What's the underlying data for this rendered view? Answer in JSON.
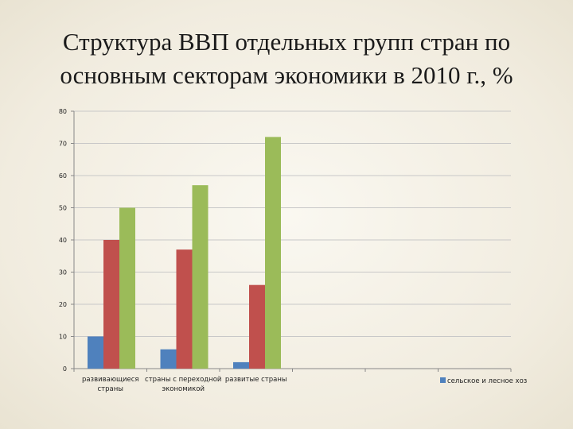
{
  "slide": {
    "title_line1": "Структура ВВП отдельных групп стран по",
    "title_line2": "основным секторам экономики в 2010 г., %"
  },
  "chart_data": {
    "type": "bar",
    "title": "Структура ВВП отдельных групп стран по основным секторам экономики в 2010 г., %",
    "categories": [
      [
        "развивающиеся",
        "страны"
      ],
      [
        "страны с переходной",
        "экономикой"
      ],
      [
        "развитые страны"
      ],
      [
        ""
      ],
      [
        ""
      ],
      [
        ""
      ]
    ],
    "series": [
      {
        "name": "сельское и лесное хоз",
        "color": "#4f81bd",
        "values": [
          10,
          6,
          2,
          null,
          null,
          null
        ]
      },
      {
        "name": "",
        "color": "#c0504d",
        "values": [
          40,
          37,
          26,
          null,
          null,
          null
        ]
      },
      {
        "name": "",
        "color": "#9bbb59",
        "values": [
          50,
          57,
          72,
          null,
          null,
          null
        ]
      }
    ],
    "ylim": [
      0,
      80
    ],
    "yticks": [
      0,
      10,
      20,
      30,
      40,
      50,
      60,
      70,
      80
    ],
    "grid": true,
    "legend_position": "right",
    "xlabel": "",
    "ylabel": ""
  }
}
